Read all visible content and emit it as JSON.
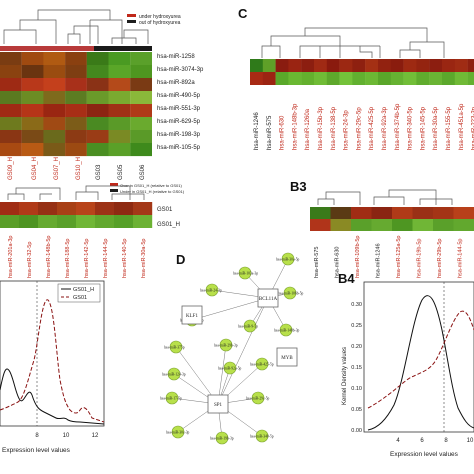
{
  "panels": {
    "C": {
      "label": "C",
      "rows": 2,
      "mirnas": [
        "hsa-miR-1246",
        "hsa-miR-575",
        "hsa-miR-630",
        "hsa-miR-148b-3p",
        "hsa-miR-1260a",
        "hsa-miR-15b-3p",
        "hsa-miR-138-5p",
        "hsa-miR-24-3p",
        "hsa-miR-29c-5p",
        "hsa-miR-425-5p",
        "hsa-miR-92a-3p",
        "hsa-miR-374b-5p",
        "hsa-miR-340-5p",
        "hsa-miR-145-5p",
        "hsa-miR-30a-5p",
        "hsa-miR-155-5p",
        "hsa-miR-451a-5p",
        "hsa-miR-223-3p"
      ],
      "colors_row1": [
        "#2f7a1a",
        "#5fa028",
        "#8a1c10",
        "#9a2412",
        "#8c1e10",
        "#a02a14",
        "#8a1a0e",
        "#9c2812",
        "#8e2010",
        "#a43014",
        "#922210",
        "#8a1c0e",
        "#9e2a12",
        "#942410",
        "#8c1e10",
        "#9a2612",
        "#a02c14",
        "#8e2010"
      ],
      "colors_row2": [
        "#a82a14",
        "#9c2412",
        "#5aa82a",
        "#6ab832",
        "#64b02e",
        "#70bc36",
        "#5ea82c",
        "#74c23a",
        "#62b030",
        "#6cb834",
        "#5aa62a",
        "#66b232",
        "#72be38",
        "#60ac2e",
        "#6ab434",
        "#5ca82c",
        "#70ba36",
        "#64b030"
      ]
    },
    "A": {
      "legend": [
        "under hydroxyurea",
        "out of hydroxyurea"
      ],
      "legend_colors": [
        "#c0281a",
        "#1e1e1e"
      ],
      "row_labels": [
        "hsa-miR-1258",
        "hsa-miR-3074-3p",
        "hsa-miR-892a",
        "hsa-miR-490-5p",
        "hsa-miR-551-3p",
        "hsa-miR-629-5p",
        "hsa-miR-198-3p",
        "hsa-miR-105-5p"
      ],
      "col_labels": [
        "GS09_H",
        "GS04_H",
        "GS07_H",
        "GS10_H",
        "GS03",
        "GS05",
        "GS06"
      ],
      "col_label_colors": [
        "#c0281a",
        "#c0281a",
        "#c0281a",
        "#c0281a",
        "#1e1e1e",
        "#1e1e1e",
        "#1e1e1e"
      ]
    },
    "B2": {
      "legend": [
        "Over in GS01_H (relative to GS01)",
        "Under in GS01_H (relative to GS01)"
      ],
      "legend_colors": [
        "#c0281a",
        "#1e1e1e"
      ],
      "row_labels": [
        "GS01",
        "GS01_H"
      ],
      "col_labels": [
        "hsa-miR-201a-3p",
        "hsa-miR-32-5p",
        "hsa-miR-148b-5p",
        "hsa-miR-188-5p",
        "hsa-miR-142-5p",
        "hsa-miR-144-5p",
        "hsa-miR-140-5p",
        "hsa-miR-30a-5p"
      ]
    },
    "B3": {
      "label": "B3",
      "col_labels": [
        "hsa-miR-575",
        "hsa-miR-630",
        "hsa-miR-109b-5p",
        "hsa-miR-1246",
        "hsa-miR-125a-5p",
        "hsa-miR-19b-5p",
        "hsa-miR-29b-5p",
        "hsa-miR-144-5p"
      ],
      "col_label_colors": [
        "#1e1e1e",
        "#1e1e1e",
        "#c0281a",
        "#1e1e1e",
        "#c0281a",
        "#c0281a",
        "#c0281a",
        "#c0281a"
      ]
    },
    "D": {
      "label": "D",
      "hubs": [
        "BCL11A",
        "KLF1",
        "MYB",
        "SP1"
      ],
      "mirnas": [
        "hsa-miR-103a-3p",
        "hsa-miR-30a-5p",
        "hsa-miR-24-3p",
        "hsa-miR-15b-3p",
        "hsa-miR-148b-3p",
        "hsa-miR-106b-5p",
        "hsa-miR-9-5p",
        "hsa-miR-29b-3p",
        "hsa-miR-375p",
        "hsa-miR-124-3p",
        "hsa-miR-92a-5p",
        "hsa-miR-425-5p",
        "hsa-miR-17-5p",
        "hsa-miR-29c-5p",
        "hsa-miR-30c-3p",
        "hsa-miR-19b-3p",
        "hsa-miR-340-5p"
      ],
      "node_color": "#b8e04a"
    },
    "B1": {
      "legend": [
        "GS01_H",
        "GS01"
      ],
      "xlabel": "Expression level values",
      "x_ticks": [
        "8",
        "10",
        "12"
      ]
    },
    "B4": {
      "label": "B4",
      "ylabel": "Kernel Density values",
      "xlabel": "Expression level values",
      "x_ticks": [
        "4",
        "6",
        "8",
        "10"
      ],
      "y_ticks": [
        "0.00",
        "0.05",
        "0.10",
        "0.15",
        "0.20",
        "0.25",
        "0.30"
      ]
    }
  }
}
